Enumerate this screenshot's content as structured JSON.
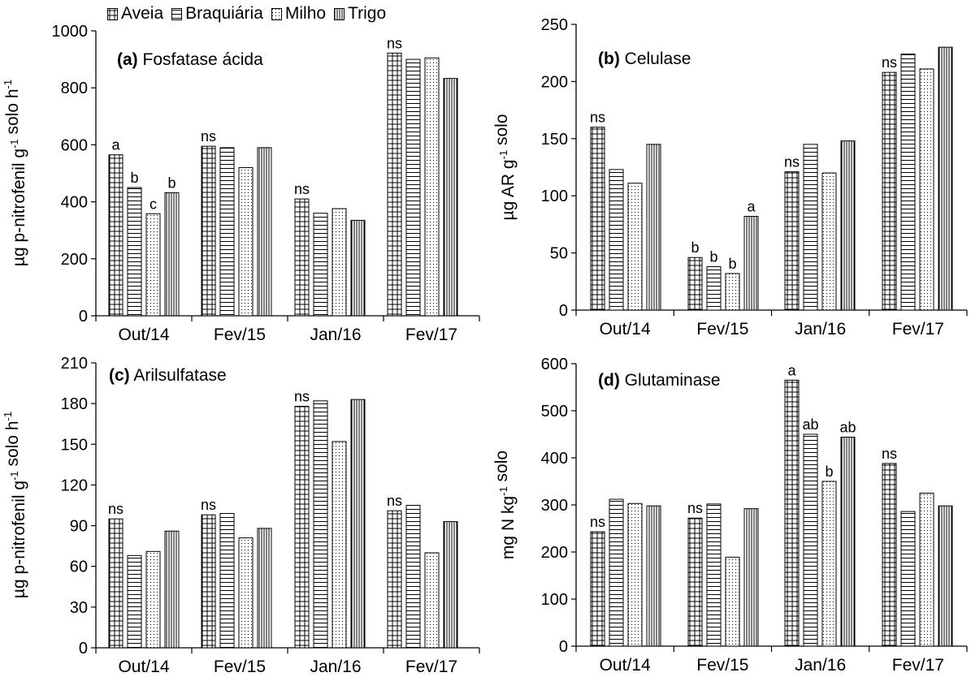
{
  "legend": [
    {
      "key": "aveia",
      "label": "Aveia",
      "pattern": "grid"
    },
    {
      "key": "braquiaria",
      "label": "Braquiária",
      "pattern": "hlines"
    },
    {
      "key": "milho",
      "label": "Milho",
      "pattern": "dots"
    },
    {
      "key": "trigo",
      "label": "Trigo",
      "pattern": "vlines"
    }
  ],
  "colors": {
    "line": "#000000",
    "bar_fill": "#ffffff"
  },
  "chart_data": [
    {
      "type": "bar",
      "panel_letter": "(a)",
      "title": "Fosfatase ácida",
      "ylabel": "µg p-nitrofenil g-1 solo h-1",
      "ylabel_parts": [
        [
          "µg p-nitrofenil g",
          ""
        ],
        [
          "-1",
          "sup"
        ],
        [
          " solo h",
          ""
        ],
        [
          "-1",
          "sup"
        ]
      ],
      "ylim": [
        0,
        1000
      ],
      "yticks": [
        0,
        200,
        400,
        600,
        800,
        1000
      ],
      "categories": [
        "Out/14",
        "Fev/15",
        "Jan/16",
        "Fev/17"
      ],
      "series": [
        {
          "name": "Aveia",
          "values": [
            565,
            595,
            410,
            922
          ]
        },
        {
          "name": "Braquiária",
          "values": [
            450,
            590,
            360,
            900
          ]
        },
        {
          "name": "Milho",
          "values": [
            358,
            520,
            376,
            905
          ]
        },
        {
          "name": "Trigo",
          "values": [
            432,
            590,
            335,
            833
          ]
        }
      ],
      "annotations": [
        [
          "a",
          "b",
          "c",
          "b"
        ],
        [
          "ns",
          "",
          "",
          ""
        ],
        [
          "ns",
          "",
          "",
          ""
        ],
        [
          "ns",
          "",
          "",
          ""
        ]
      ]
    },
    {
      "type": "bar",
      "panel_letter": "(b)",
      "title": "Celulase",
      "ylabel": "µg AR g-1 solo",
      "ylabel_parts": [
        [
          "µg AR g",
          ""
        ],
        [
          "-1",
          "sup"
        ],
        [
          " solo",
          ""
        ]
      ],
      "ylim": [
        0,
        250
      ],
      "yticks": [
        0,
        50,
        100,
        150,
        200,
        250
      ],
      "categories": [
        "Out/14",
        "Fev/15",
        "Jan/16",
        "Fev/17"
      ],
      "series": [
        {
          "name": "Aveia",
          "values": [
            160,
            46,
            121,
            208
          ]
        },
        {
          "name": "Braquiária",
          "values": [
            123,
            38,
            145,
            224
          ]
        },
        {
          "name": "Milho",
          "values": [
            111,
            32,
            120,
            211
          ]
        },
        {
          "name": "Trigo",
          "values": [
            145,
            82,
            148,
            230
          ]
        }
      ],
      "annotations": [
        [
          "ns",
          "",
          "",
          ""
        ],
        [
          "b",
          "b",
          "b",
          "a"
        ],
        [
          "ns",
          "",
          "",
          ""
        ],
        [
          "ns",
          "",
          "",
          ""
        ]
      ]
    },
    {
      "type": "bar",
      "panel_letter": "(c)",
      "title": "Arilsulfatase",
      "ylabel": "µg p-nitrofenil g-1 solo h-1",
      "ylabel_parts": [
        [
          "µg p-nitrofenil g",
          ""
        ],
        [
          "-1",
          "sup"
        ],
        [
          " solo h",
          ""
        ],
        [
          "-1",
          "sup"
        ]
      ],
      "ylim": [
        0,
        210
      ],
      "yticks": [
        0,
        30,
        60,
        90,
        120,
        150,
        180,
        210
      ],
      "categories": [
        "Out/14",
        "Fev/15",
        "Jan/16",
        "Fev/17"
      ],
      "series": [
        {
          "name": "Aveia",
          "values": [
            95,
            98,
            178,
            101
          ]
        },
        {
          "name": "Braquiária",
          "values": [
            68,
            99,
            182,
            105
          ]
        },
        {
          "name": "Milho",
          "values": [
            71,
            81,
            152,
            70
          ]
        },
        {
          "name": "Trigo",
          "values": [
            86,
            88,
            183,
            93
          ]
        }
      ],
      "annotations": [
        [
          "ns",
          "",
          "",
          ""
        ],
        [
          "ns",
          "",
          "",
          ""
        ],
        [
          "ns",
          "",
          "",
          ""
        ],
        [
          "ns",
          "",
          "",
          ""
        ]
      ]
    },
    {
      "type": "bar",
      "panel_letter": "(d)",
      "title": "Glutaminase",
      "ylabel": "mg N kg-1 solo",
      "ylabel_parts": [
        [
          "mg N kg",
          ""
        ],
        [
          "-1",
          "sup"
        ],
        [
          " solo",
          ""
        ]
      ],
      "ylim": [
        0,
        600
      ],
      "yticks": [
        0,
        100,
        200,
        300,
        400,
        500,
        600
      ],
      "categories": [
        "Out/14",
        "Fev/15",
        "Jan/16",
        "Fev/17"
      ],
      "series": [
        {
          "name": "Aveia",
          "values": [
            243,
            272,
            565,
            388
          ]
        },
        {
          "name": "Braquiária",
          "values": [
            312,
            302,
            450,
            286
          ]
        },
        {
          "name": "Milho",
          "values": [
            303,
            189,
            350,
            325
          ]
        },
        {
          "name": "Trigo",
          "values": [
            298,
            292,
            444,
            298
          ]
        }
      ],
      "annotations": [
        [
          "ns",
          "",
          "",
          ""
        ],
        [
          "ns",
          "",
          "",
          ""
        ],
        [
          "a",
          "ab",
          "b",
          "ab"
        ],
        [
          "ns",
          "",
          "",
          ""
        ]
      ]
    }
  ]
}
